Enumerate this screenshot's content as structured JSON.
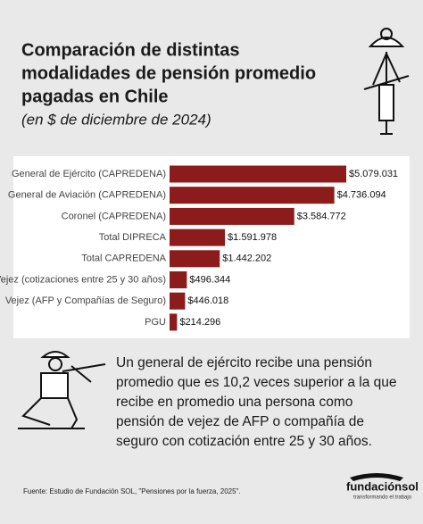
{
  "chart_data": {
    "type": "bar",
    "title": [
      "Comparación de distintas",
      "modalidades de pensión promedio",
      "pagadas en Chile"
    ],
    "subtitle": "(en $ de diciembre de 2024)",
    "categories": [
      "General de Ejército (CAPREDENA)",
      "General de Aviación (CAPREDENA)",
      "Coronel (CAPREDENA)",
      "Total DIPRECA",
      "Total CAPREDENA",
      "Vejez (cotizaciones entre 25 y 30 años)",
      "Vejez (AFP y Compañías de Seguro)",
      "PGU"
    ],
    "values": [
      5079031,
      4736094,
      3584772,
      1591978,
      1442202,
      496344,
      446018,
      214296
    ],
    "value_labels": [
      "$5.079.031",
      "$4.736.094",
      "$3.584.772",
      "$1.591.978",
      "$1.442.202",
      "$496.344",
      "$446.018",
      "$214.296"
    ],
    "color": "#8c1c1c",
    "annotation": [
      "Un general de ejército recibe una pensión",
      "promedio que es 10,2 veces superior a la que",
      "recibe en promedio una persona como",
      "pensión de vejez de AFP o compañía de",
      "seguro con cotización entre 25 y 30 años."
    ],
    "source": "Fuente: Estudio de Fundación SOL, \"Pensiones por la fuerza, 2025\".",
    "brand": "fundaciónsol",
    "brand_tagline": "transformando el trabajo"
  }
}
